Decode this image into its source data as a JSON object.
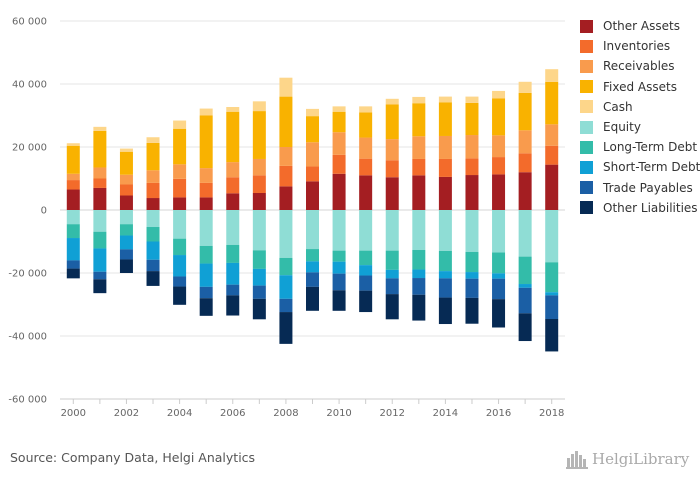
{
  "chart_data": {
    "type": "bar",
    "stacked": true,
    "categories": [
      "2000",
      "2001",
      "2002",
      "2003",
      "2004",
      "2005",
      "2006",
      "2007",
      "2008",
      "2009",
      "2010",
      "2011",
      "2012",
      "2013",
      "2014",
      "2015",
      "2016",
      "2017",
      "2018"
    ],
    "x_tick_labels": [
      "2000",
      "2002",
      "2004",
      "2006",
      "2008",
      "2010",
      "2012",
      "2014",
      "2016",
      "2018"
    ],
    "y_ticks": [
      60000,
      40000,
      20000,
      0,
      -20000,
      -40000,
      -60000
    ],
    "y_tick_labels": [
      "60 000",
      "40 000",
      "20 000",
      "0",
      "-20 000",
      "-40 000",
      "-60 000"
    ],
    "ylim": [
      -60000,
      60000
    ],
    "grid": "horizontal",
    "legend_position": "right",
    "series": [
      {
        "name": "Other Assets",
        "color": "#a41e22",
        "values": [
          6500,
          7000,
          4600,
          3800,
          4000,
          4000,
          5300,
          5400,
          7500,
          9100,
          11500,
          11000,
          10400,
          11000,
          10500,
          11100,
          11300,
          12000,
          14400
        ]
      },
      {
        "name": "Inventories",
        "color": "#f36b2b",
        "values": [
          3000,
          3000,
          3500,
          4800,
          5900,
          4600,
          5100,
          5600,
          6500,
          4700,
          6000,
          5300,
          5400,
          5200,
          5700,
          5300,
          5500,
          6000,
          6000
        ]
      },
      {
        "name": "Receivables",
        "color": "#f99b4d",
        "values": [
          2000,
          3500,
          3100,
          4000,
          4600,
          4700,
          4800,
          5200,
          6000,
          7700,
          7200,
          6700,
          6700,
          7200,
          7300,
          7400,
          6900,
          7300,
          6800
        ]
      },
      {
        "name": "Fixed Assets",
        "color": "#f9b200",
        "values": [
          8900,
          11600,
          7300,
          8700,
          11300,
          16700,
          16000,
          15200,
          16000,
          8300,
          6500,
          8000,
          11000,
          10500,
          10700,
          10200,
          11700,
          11900,
          13500
        ]
      },
      {
        "name": "Cash",
        "color": "#fdd68a",
        "values": [
          800,
          1300,
          1000,
          1800,
          2600,
          2200,
          1500,
          3100,
          6000,
          2300,
          1700,
          1900,
          1800,
          2000,
          1800,
          2000,
          2400,
          3500,
          4000
        ]
      },
      {
        "name": "Equity",
        "color": "#8fddd5",
        "values": [
          -4500,
          -6900,
          -4500,
          -5400,
          -9100,
          -11400,
          -11100,
          -12800,
          -15200,
          -12400,
          -12900,
          -12900,
          -12900,
          -12700,
          -13000,
          -13300,
          -13500,
          -14800,
          -16600
        ]
      },
      {
        "name": "Long-Term Debt",
        "color": "#33bca9",
        "values": [
          -4400,
          -5300,
          -3600,
          -4600,
          -5200,
          -5600,
          -5700,
          -5900,
          -5500,
          -3900,
          -3500,
          -4600,
          -6100,
          -6200,
          -6400,
          -6400,
          -6600,
          -8700,
          -9500
        ]
      },
      {
        "name": "Short-Term Debt",
        "color": "#10a0d5",
        "values": [
          -7100,
          -7400,
          -4400,
          -5800,
          -6800,
          -7400,
          -6900,
          -5300,
          -7500,
          -3500,
          -3800,
          -3300,
          -2700,
          -2700,
          -2300,
          -2100,
          -1700,
          -1200,
          -1000
        ]
      },
      {
        "name": "Trade Payables",
        "color": "#1b5fa5",
        "values": [
          -2600,
          -2400,
          -3200,
          -3600,
          -3200,
          -3600,
          -3400,
          -4200,
          -4200,
          -4600,
          -5300,
          -4800,
          -5000,
          -5300,
          -6100,
          -6100,
          -6500,
          -8100,
          -7500
        ]
      },
      {
        "name": "Other Liabilities",
        "color": "#062a54",
        "values": [
          -3100,
          -4400,
          -4300,
          -4700,
          -5800,
          -5600,
          -6400,
          -6500,
          -10100,
          -7600,
          -6500,
          -6800,
          -8000,
          -8200,
          -8400,
          -8200,
          -9000,
          -8800,
          -10300
        ]
      }
    ]
  },
  "source_text": "Source: Company Data, Helgi Analytics",
  "logo_text": "HelgiLibrary"
}
